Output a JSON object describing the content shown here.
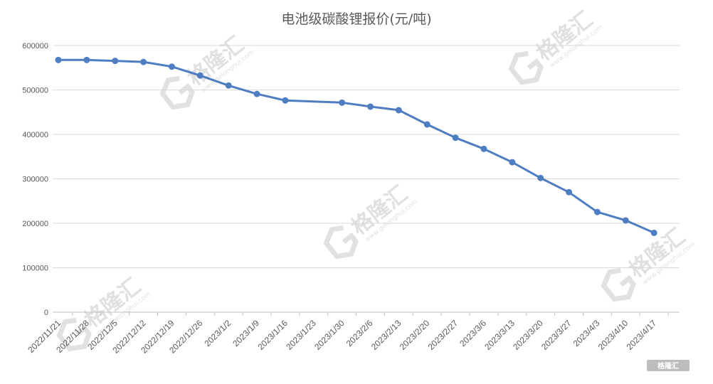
{
  "chart_data": {
    "type": "line",
    "title": "电池级碳酸锂报价(元/吨)",
    "xlabel": "",
    "ylabel": "",
    "categories": [
      "2022/11/21",
      "2022/11/28",
      "2022/12/5",
      "2022/12/12",
      "2022/12/19",
      "2022/12/26",
      "2023/1/2",
      "2023/1/9",
      "2023/1/16",
      "2023/1/23",
      "2023/1/30",
      "2023/2/6",
      "2023/2/13",
      "2023/2/20",
      "2023/2/27",
      "2023/3/6",
      "2023/3/13",
      "2023/3/20",
      "2023/3/27",
      "2023/4/3",
      "2023/4/10",
      "2023/4/17"
    ],
    "series": [
      {
        "values": [
          567500,
          567500,
          565500,
          563000,
          552500,
          532500,
          510000,
          491000,
          476500,
          null,
          471500,
          462500,
          454500,
          422500,
          392500,
          367500,
          337500,
          302000,
          270000,
          225500,
          206500,
          178500
        ]
      }
    ],
    "ylim": [
      0,
      600000
    ],
    "yticks": [
      "0",
      "100000",
      "200000",
      "300000",
      "400000",
      "500000",
      "600000"
    ],
    "grid": true,
    "legend": "none",
    "line_color": "#4f7dc1",
    "marker": "circle"
  },
  "watermark": {
    "text": "格隆汇",
    "sub": "www.gelonghui.com",
    "color": "#c8c8c8"
  },
  "badge": {
    "text": "格隆汇",
    "color": "#bdbdbd"
  }
}
